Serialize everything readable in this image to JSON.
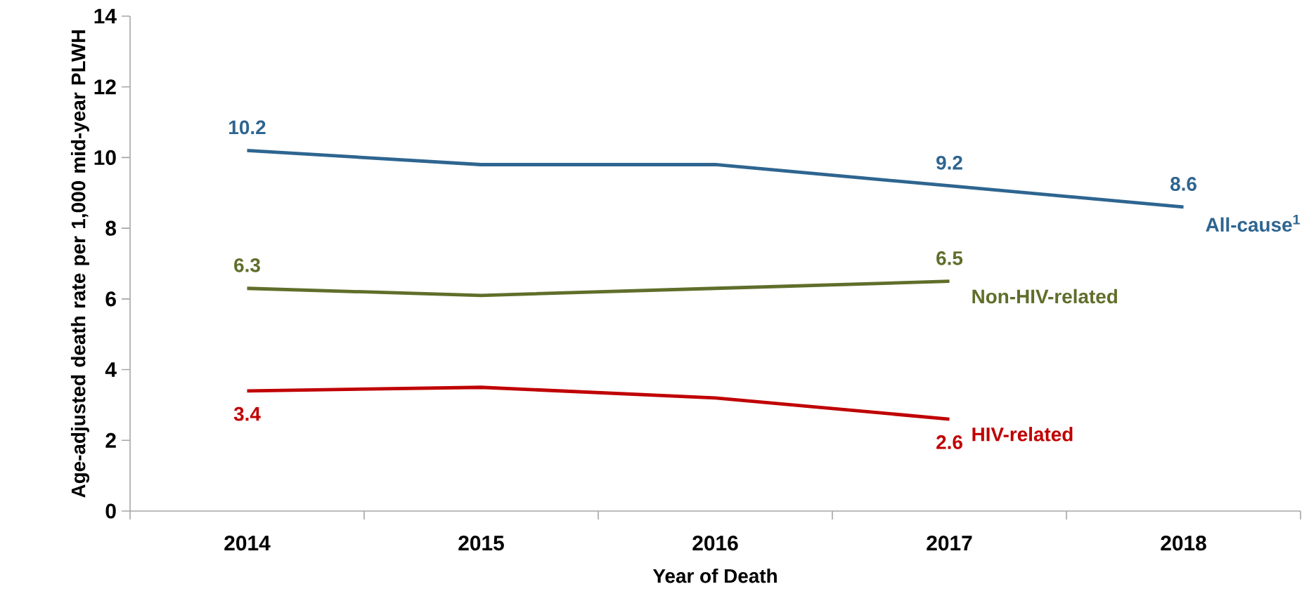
{
  "chart_data": {
    "type": "line",
    "xlabel": "Year of Death",
    "ylabel": "Age-adjusted death rate per 1,000 mid-year PLWH",
    "categories": [
      "2014",
      "2015",
      "2016",
      "2017",
      "2018"
    ],
    "ylim": [
      0,
      14
    ],
    "yticks": [
      0,
      2,
      4,
      6,
      8,
      10,
      12,
      14
    ],
    "grid": false,
    "marker": "none",
    "line_style": "solid",
    "series": [
      {
        "name": "All-cause$^{1}$",
        "color": "#2e6590",
        "values": [
          10.2,
          9.8,
          9.8,
          9.2,
          8.6
        ],
        "value_labels": [
          "10.2",
          null,
          null,
          "9.2",
          "8.6"
        ]
      },
      {
        "name": "Non-HIV-related",
        "color": "#5f6e2a",
        "values": [
          6.3,
          6.1,
          6.3,
          6.5,
          null
        ],
        "value_labels": [
          "6.3",
          null,
          null,
          "6.5",
          null
        ]
      },
      {
        "name": "HIV-related",
        "color": "#c00000",
        "values": [
          3.4,
          3.5,
          3.2,
          2.6,
          null
        ],
        "value_labels": [
          "3.4",
          null,
          null,
          "2.6",
          null
        ]
      }
    ]
  }
}
